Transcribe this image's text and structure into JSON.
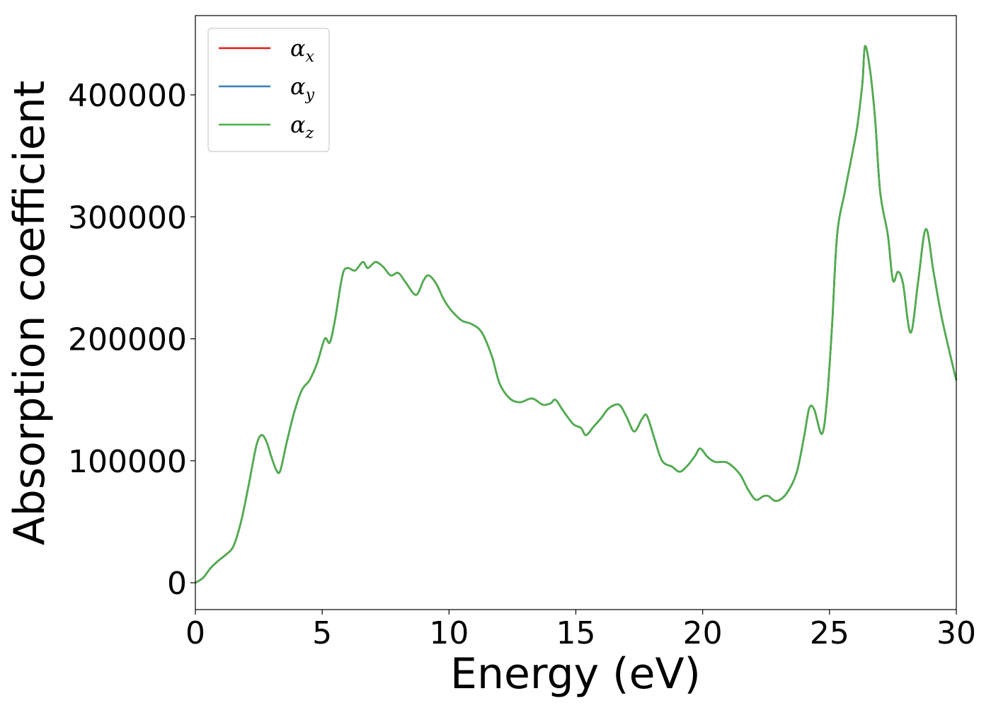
{
  "chart_data": {
    "type": "line",
    "title": "",
    "xlabel": "Energy (eV)",
    "ylabel": "Absorption coefficient",
    "xlim": [
      0,
      30
    ],
    "ylim": [
      -22000,
      465000
    ],
    "xticks": [
      0,
      5,
      10,
      15,
      20,
      25,
      30
    ],
    "yticks": [
      0,
      100000,
      200000,
      300000,
      400000
    ],
    "xtick_labels": [
      "0",
      "5",
      "10",
      "15",
      "20",
      "25",
      "30"
    ],
    "ytick_labels": [
      "0",
      "100000",
      "200000",
      "300000",
      "400000"
    ],
    "grid": false,
    "legend_position": "top-left",
    "series": [
      {
        "name": "αx",
        "symbol": "α",
        "subscript": "x",
        "color": "#e41a1c"
      },
      {
        "name": "αy",
        "symbol": "α",
        "subscript": "y",
        "color": "#377eb8"
      },
      {
        "name": "αz",
        "symbol": "α",
        "subscript": "z",
        "color": "#4daf4a"
      }
    ],
    "x": [
      0,
      0.3,
      0.6,
      0.9,
      1.2,
      1.5,
      1.8,
      2.1,
      2.4,
      2.6,
      2.8,
      3.0,
      3.2,
      3.35,
      3.6,
      3.9,
      4.2,
      4.5,
      4.8,
      5.1,
      5.3,
      5.5,
      5.8,
      6.0,
      6.3,
      6.6,
      6.8,
      7.1,
      7.4,
      7.7,
      8.0,
      8.3,
      8.7,
      9.0,
      9.2,
      9.5,
      9.8,
      10.1,
      10.5,
      10.9,
      11.3,
      11.7,
      12.0,
      12.4,
      12.8,
      13.2,
      13.4,
      13.7,
      14.0,
      14.2,
      14.5,
      14.9,
      15.2,
      15.4,
      15.7,
      16.0,
      16.3,
      16.7,
      17.0,
      17.3,
      17.6,
      17.8,
      18.1,
      18.4,
      18.8,
      19.1,
      19.4,
      19.7,
      19.9,
      20.2,
      20.5,
      20.9,
      21.2,
      21.5,
      21.8,
      22.1,
      22.4,
      22.6,
      22.9,
      23.3,
      23.7,
      24.0,
      24.2,
      24.4,
      24.7,
      24.9,
      25.1,
      25.3,
      25.6,
      25.9,
      26.1,
      26.3,
      26.4,
      26.6,
      26.8,
      27.0,
      27.3,
      27.5,
      27.7,
      27.9,
      28.2,
      28.5,
      28.8,
      29.1,
      29.4,
      29.7,
      30.0
    ],
    "y": [
      0,
      4000,
      12000,
      18000,
      23000,
      30000,
      50000,
      80000,
      112000,
      121000,
      116000,
      103000,
      92000,
      92000,
      115000,
      140000,
      158000,
      166000,
      180000,
      200000,
      197000,
      215000,
      252000,
      258000,
      256000,
      263000,
      258000,
      263000,
      259000,
      252000,
      254000,
      246000,
      236000,
      248000,
      252000,
      245000,
      232000,
      223000,
      215000,
      212000,
      205000,
      185000,
      163000,
      151000,
      148000,
      151000,
      150000,
      146000,
      147000,
      150000,
      141000,
      130000,
      127000,
      121000,
      128000,
      135000,
      143000,
      146000,
      136000,
      124000,
      134000,
      137000,
      118000,
      100000,
      95000,
      91000,
      96000,
      104000,
      110000,
      103000,
      99000,
      99000,
      95000,
      88000,
      76000,
      68000,
      71000,
      71000,
      67000,
      73000,
      90000,
      120000,
      143000,
      142000,
      122000,
      150000,
      210000,
      285000,
      320000,
      352000,
      375000,
      410000,
      440000,
      420000,
      380000,
      320000,
      285000,
      248000,
      255000,
      245000,
      205000,
      248000,
      290000,
      255000,
      220000,
      192000,
      166000
    ]
  }
}
